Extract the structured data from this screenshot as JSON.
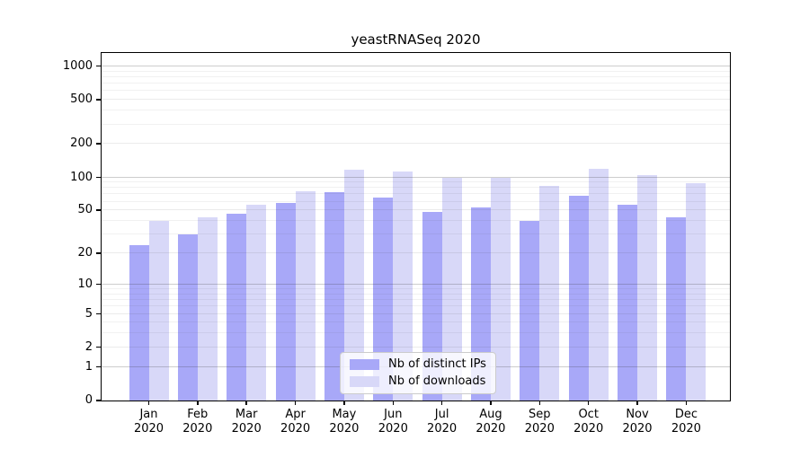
{
  "title": "yeastRNASeq 2020",
  "chart_data": {
    "type": "bar",
    "title": "yeastRNASeq 2020",
    "categories": [
      "Jan 2020",
      "Feb 2020",
      "Mar 2020",
      "Apr 2020",
      "May 2020",
      "Jun 2020",
      "Jul 2020",
      "Aug 2020",
      "Sep 2020",
      "Oct 2020",
      "Nov 2020",
      "Dec 2020"
    ],
    "series": [
      {
        "name": "Nb of distinct IPs",
        "color": "#a8a8f8",
        "values": [
          24,
          30,
          47,
          58,
          73,
          65,
          48,
          53,
          40,
          68,
          56,
          43
        ]
      },
      {
        "name": "Nb of downloads",
        "color": "#d8d8f8",
        "values": [
          40,
          43,
          56,
          75,
          117,
          113,
          100,
          100,
          84,
          120,
          104,
          88
        ]
      }
    ],
    "y_axis": {
      "scale": "log1p",
      "tick_values": [
        0,
        1,
        2,
        5,
        10,
        20,
        50,
        100,
        200,
        500,
        1000
      ],
      "tick_labels": [
        "0",
        "1",
        "2",
        "5",
        "10",
        "20",
        "50",
        "100",
        "200",
        "500",
        "1000"
      ],
      "decade_ticks": [
        1,
        10,
        100,
        1000
      ],
      "minor_gridlines": [
        3,
        4,
        6,
        7,
        8,
        9,
        30,
        40,
        60,
        70,
        80,
        90,
        300,
        400,
        600,
        700,
        800,
        900
      ],
      "max": 1320
    },
    "x_axis": {
      "tick_label_lines": [
        "month",
        "year"
      ]
    },
    "legend": {
      "position": "lower center",
      "entries": [
        "Nb of distinct IPs",
        "Nb of downloads"
      ]
    },
    "grid": true,
    "colors": {
      "major_grid": "rgba(60,60,60,0.26)",
      "mid_grid": "rgba(60,60,60,0.10)",
      "minor_grid": "rgba(60,60,60,0.07)",
      "spine": "#000000",
      "background": "#ffffff"
    }
  }
}
